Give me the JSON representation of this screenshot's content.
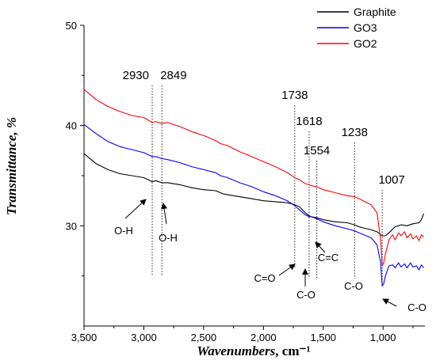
{
  "chart_data": {
    "type": "line",
    "xlabel": "Wavenumbers",
    "xlabel_unit": ", cm⁻¹",
    "ylabel": "Transmittance, %",
    "xlim": [
      3500,
      650
    ],
    "x_reversed": true,
    "ylim": [
      20,
      50
    ],
    "xticks": [
      3500,
      3000,
      2500,
      2000,
      1500,
      1000
    ],
    "xtick_labels": [
      "3,500",
      "3,000",
      "2,500",
      "2,000",
      "1,500",
      "1,000"
    ],
    "yticks": [
      30,
      40,
      50
    ],
    "ytick_labels": [
      "30",
      "40",
      "50"
    ],
    "grid": false,
    "legend_position": "top-right",
    "series": [
      {
        "name": "Graphite",
        "color": "#000000",
        "points": [
          [
            3500,
            37.2
          ],
          [
            3400,
            36.2
          ],
          [
            3300,
            35.6
          ],
          [
            3200,
            35.2
          ],
          [
            3100,
            35.0
          ],
          [
            3000,
            34.8
          ],
          [
            2930,
            34.4
          ],
          [
            2900,
            34.5
          ],
          [
            2849,
            34.3
          ],
          [
            2800,
            34.3
          ],
          [
            2700,
            34.1
          ],
          [
            2600,
            33.8
          ],
          [
            2500,
            33.6
          ],
          [
            2400,
            33.5
          ],
          [
            2360,
            33.3
          ],
          [
            2340,
            33.2
          ],
          [
            2300,
            33.1
          ],
          [
            2200,
            32.9
          ],
          [
            2100,
            32.7
          ],
          [
            2000,
            32.5
          ],
          [
            1900,
            32.4
          ],
          [
            1800,
            32.3
          ],
          [
            1738,
            32.1
          ],
          [
            1700,
            31.9
          ],
          [
            1650,
            31.3
          ],
          [
            1618,
            31.0
          ],
          [
            1600,
            30.9
          ],
          [
            1554,
            30.8
          ],
          [
            1500,
            30.6
          ],
          [
            1400,
            30.4
          ],
          [
            1300,
            30.3
          ],
          [
            1238,
            30.1
          ],
          [
            1200,
            29.9
          ],
          [
            1100,
            29.6
          ],
          [
            1050,
            29.4
          ],
          [
            1007,
            29.0
          ],
          [
            980,
            29.0
          ],
          [
            950,
            29.3
          ],
          [
            900,
            29.9
          ],
          [
            850,
            30.1
          ],
          [
            800,
            30.0
          ],
          [
            750,
            30.2
          ],
          [
            700,
            30.3
          ],
          [
            680,
            30.6
          ],
          [
            660,
            31.2
          ]
        ]
      },
      {
        "name": "GO3",
        "color": "#0000ff",
        "points": [
          [
            3500,
            40.1
          ],
          [
            3400,
            39.2
          ],
          [
            3300,
            38.4
          ],
          [
            3200,
            37.9
          ],
          [
            3100,
            37.6
          ],
          [
            3000,
            37.3
          ],
          [
            2930,
            36.9
          ],
          [
            2900,
            36.9
          ],
          [
            2849,
            36.7
          ],
          [
            2800,
            36.6
          ],
          [
            2700,
            36.3
          ],
          [
            2600,
            35.9
          ],
          [
            2500,
            35.6
          ],
          [
            2400,
            35.3
          ],
          [
            2360,
            35.0
          ],
          [
            2300,
            34.8
          ],
          [
            2200,
            34.3
          ],
          [
            2100,
            33.9
          ],
          [
            2000,
            33.4
          ],
          [
            1900,
            33.0
          ],
          [
            1800,
            32.5
          ],
          [
            1738,
            32.0
          ],
          [
            1700,
            31.6
          ],
          [
            1650,
            31.1
          ],
          [
            1618,
            30.9
          ],
          [
            1600,
            30.9
          ],
          [
            1554,
            30.7
          ],
          [
            1500,
            30.4
          ],
          [
            1400,
            30.0
          ],
          [
            1300,
            29.7
          ],
          [
            1238,
            29.5
          ],
          [
            1200,
            29.3
          ],
          [
            1100,
            28.8
          ],
          [
            1050,
            28.1
          ],
          [
            1020,
            26.3
          ],
          [
            1007,
            24.0
          ],
          [
            995,
            24.2
          ],
          [
            980,
            25.0
          ],
          [
            950,
            26.0
          ],
          [
            920,
            26.1
          ],
          [
            900,
            25.8
          ],
          [
            870,
            26.3
          ],
          [
            850,
            25.9
          ],
          [
            820,
            26.2
          ],
          [
            800,
            25.8
          ],
          [
            770,
            26.3
          ],
          [
            750,
            25.9
          ],
          [
            720,
            26.0
          ],
          [
            700,
            25.6
          ],
          [
            680,
            26.1
          ],
          [
            660,
            25.8
          ]
        ]
      },
      {
        "name": "GO2",
        "color": "#ff0000",
        "points": [
          [
            3500,
            43.6
          ],
          [
            3400,
            42.6
          ],
          [
            3300,
            41.9
          ],
          [
            3200,
            41.4
          ],
          [
            3100,
            41.0
          ],
          [
            3000,
            40.8
          ],
          [
            2930,
            40.3
          ],
          [
            2900,
            40.4
          ],
          [
            2849,
            40.2
          ],
          [
            2800,
            40.3
          ],
          [
            2700,
            39.9
          ],
          [
            2600,
            39.4
          ],
          [
            2500,
            39.0
          ],
          [
            2400,
            38.5
          ],
          [
            2360,
            38.2
          ],
          [
            2300,
            38.0
          ],
          [
            2200,
            37.4
          ],
          [
            2100,
            36.9
          ],
          [
            2000,
            36.4
          ],
          [
            1900,
            35.9
          ],
          [
            1800,
            35.3
          ],
          [
            1738,
            34.8
          ],
          [
            1700,
            34.6
          ],
          [
            1650,
            34.2
          ],
          [
            1618,
            34.1
          ],
          [
            1600,
            34.0
          ],
          [
            1554,
            33.9
          ],
          [
            1500,
            33.6
          ],
          [
            1400,
            33.3
          ],
          [
            1300,
            33.0
          ],
          [
            1238,
            32.9
          ],
          [
            1200,
            32.7
          ],
          [
            1100,
            32.1
          ],
          [
            1050,
            31.3
          ],
          [
            1020,
            28.6
          ],
          [
            1007,
            26.0
          ],
          [
            995,
            26.3
          ],
          [
            980,
            27.2
          ],
          [
            950,
            28.6
          ],
          [
            920,
            29.1
          ],
          [
            900,
            28.6
          ],
          [
            870,
            29.3
          ],
          [
            850,
            29.0
          ],
          [
            820,
            29.4
          ],
          [
            800,
            28.8
          ],
          [
            770,
            29.2
          ],
          [
            750,
            28.7
          ],
          [
            720,
            29.0
          ],
          [
            700,
            28.5
          ],
          [
            680,
            29.1
          ],
          [
            660,
            28.9
          ]
        ]
      }
    ],
    "peaks": [
      {
        "label": "2930",
        "x": 2930
      },
      {
        "label": "2849",
        "x": 2849
      },
      {
        "label": "1738",
        "x": 1738
      },
      {
        "label": "1618",
        "x": 1618
      },
      {
        "label": "1554",
        "x": 1554
      },
      {
        "label": "1238",
        "x": 1238
      },
      {
        "label": "1007",
        "x": 1007
      }
    ],
    "annotations": [
      {
        "label": "O-H",
        "x": 2930
      },
      {
        "label": "O-H",
        "x": 2849
      },
      {
        "label": "C=O",
        "x": 1738
      },
      {
        "label": "C-O",
        "x": 1618
      },
      {
        "label": "C=C",
        "x": 1554
      },
      {
        "label": "C-O",
        "x": 1238
      },
      {
        "label": "C-O",
        "x": 1007
      }
    ]
  }
}
